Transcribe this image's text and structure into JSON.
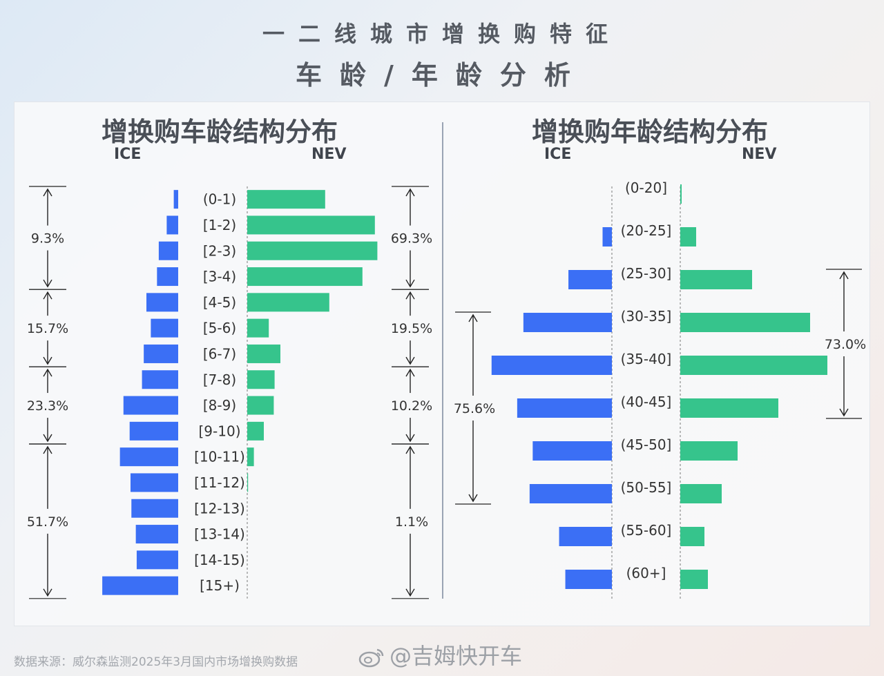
{
  "header": {
    "title_line1": "一二线城市增换购特征",
    "title_line2": "车龄/年龄分析"
  },
  "colors": {
    "ice": "#3b6ff5",
    "nev": "#36c48c"
  },
  "chart_data": [
    {
      "type": "bar",
      "orientation": "horizontal-butterfly",
      "title": "增换购车龄结构分布",
      "left_label": "ICE",
      "right_label": "NEV",
      "categories": [
        "(0-1)",
        "[1-2)",
        "[2-3)",
        "[3-4)",
        "[4-5)",
        "[5-6)",
        "[6-7)",
        "[7-8)",
        "[8-9)",
        "[9-10)",
        "[10-11)",
        "[11-12)",
        "[12-13)",
        "[13-14)",
        "[14-15)",
        "[15+)"
      ],
      "series": [
        {
          "name": "ICE",
          "values": [
            0.5,
            1.3,
            2.2,
            2.4,
            3.6,
            3.1,
            3.9,
            4.1,
            6.2,
            5.5,
            6.6,
            5.4,
            5.3,
            4.8,
            4.7,
            8.6
          ]
        },
        {
          "name": "NEV",
          "values": [
            9.4,
            15.4,
            15.7,
            13.9,
            9.9,
            2.6,
            4.0,
            3.3,
            3.2,
            2.0,
            0.8,
            0.1,
            0.0,
            0.0,
            0.0,
            0.0
          ]
        }
      ],
      "brackets_left": [
        {
          "label": "9.3%",
          "from": 0,
          "to": 3
        },
        {
          "label": "15.7%",
          "from": 4,
          "to": 6
        },
        {
          "label": "23.3%",
          "from": 7,
          "to": 9
        },
        {
          "label": "51.7%",
          "from": 10,
          "to": 15
        }
      ],
      "brackets_right": [
        {
          "label": "69.3%",
          "from": 0,
          "to": 3
        },
        {
          "label": "19.5%",
          "from": 4,
          "to": 6
        },
        {
          "label": "10.2%",
          "from": 7,
          "to": 9
        },
        {
          "label": "1.1%",
          "from": 10,
          "to": 15
        }
      ]
    },
    {
      "type": "bar",
      "orientation": "horizontal-butterfly",
      "title": "增换购年龄结构分布",
      "left_label": "ICE",
      "right_label": "NEV",
      "categories": [
        "(0-20]",
        "(20-25]",
        "(25-30]",
        "(30-35]",
        "(35-40]",
        "(40-45]",
        "(45-50]",
        "(50-55]",
        "(55-60]",
        "(60+]"
      ],
      "series": [
        {
          "name": "ICE",
          "values": [
            0.0,
            1.2,
            5.6,
            11.4,
            15.5,
            12.2,
            10.2,
            10.6,
            6.8,
            6.0
          ]
        },
        {
          "name": "NEV",
          "values": [
            0.2,
            2.3,
            10.4,
            18.8,
            21.3,
            14.2,
            8.3,
            6.0,
            3.5,
            4.0
          ]
        }
      ],
      "brackets_left": [
        {
          "label": "75.6%",
          "from": 3,
          "to": 7
        }
      ],
      "brackets_right": [
        {
          "label": "73.0%",
          "from": 2,
          "to": 5
        }
      ]
    }
  ],
  "footer": {
    "source": "数据来源：威尔森监测2025年3月国内市场增换购数据",
    "watermark": "@吉姆快开车"
  }
}
